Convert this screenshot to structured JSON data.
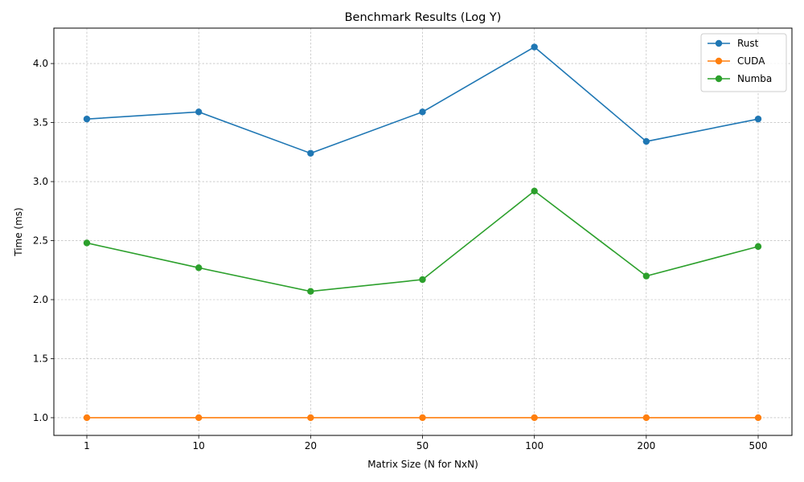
{
  "chart_data": {
    "type": "line",
    "title": "Benchmark Results (Log Y)",
    "xlabel": "Matrix Size (N for NxN)",
    "ylabel": "Time (ms)",
    "categories": [
      "1",
      "10",
      "20",
      "50",
      "100",
      "200",
      "500"
    ],
    "ylim": [
      0.85,
      4.3
    ],
    "yticks": [
      1.0,
      1.5,
      2.0,
      2.5,
      3.0,
      3.5,
      4.0
    ],
    "ytick_labels": [
      "1.0",
      "1.5",
      "2.0",
      "2.5",
      "3.0",
      "3.5",
      "4.0"
    ],
    "grid": true,
    "legend_position": "top-right",
    "series": [
      {
        "name": "Rust",
        "color": "#1f77b4",
        "values": [
          3.53,
          3.59,
          3.24,
          3.59,
          4.14,
          3.34,
          3.53
        ]
      },
      {
        "name": "CUDA",
        "color": "#ff7f0e",
        "values": [
          1.0,
          1.0,
          1.0,
          1.0,
          1.0,
          1.0,
          1.0
        ]
      },
      {
        "name": "Numba",
        "color": "#2ca02c",
        "values": [
          2.48,
          2.27,
          2.07,
          2.17,
          2.92,
          2.2,
          2.45
        ]
      }
    ]
  }
}
